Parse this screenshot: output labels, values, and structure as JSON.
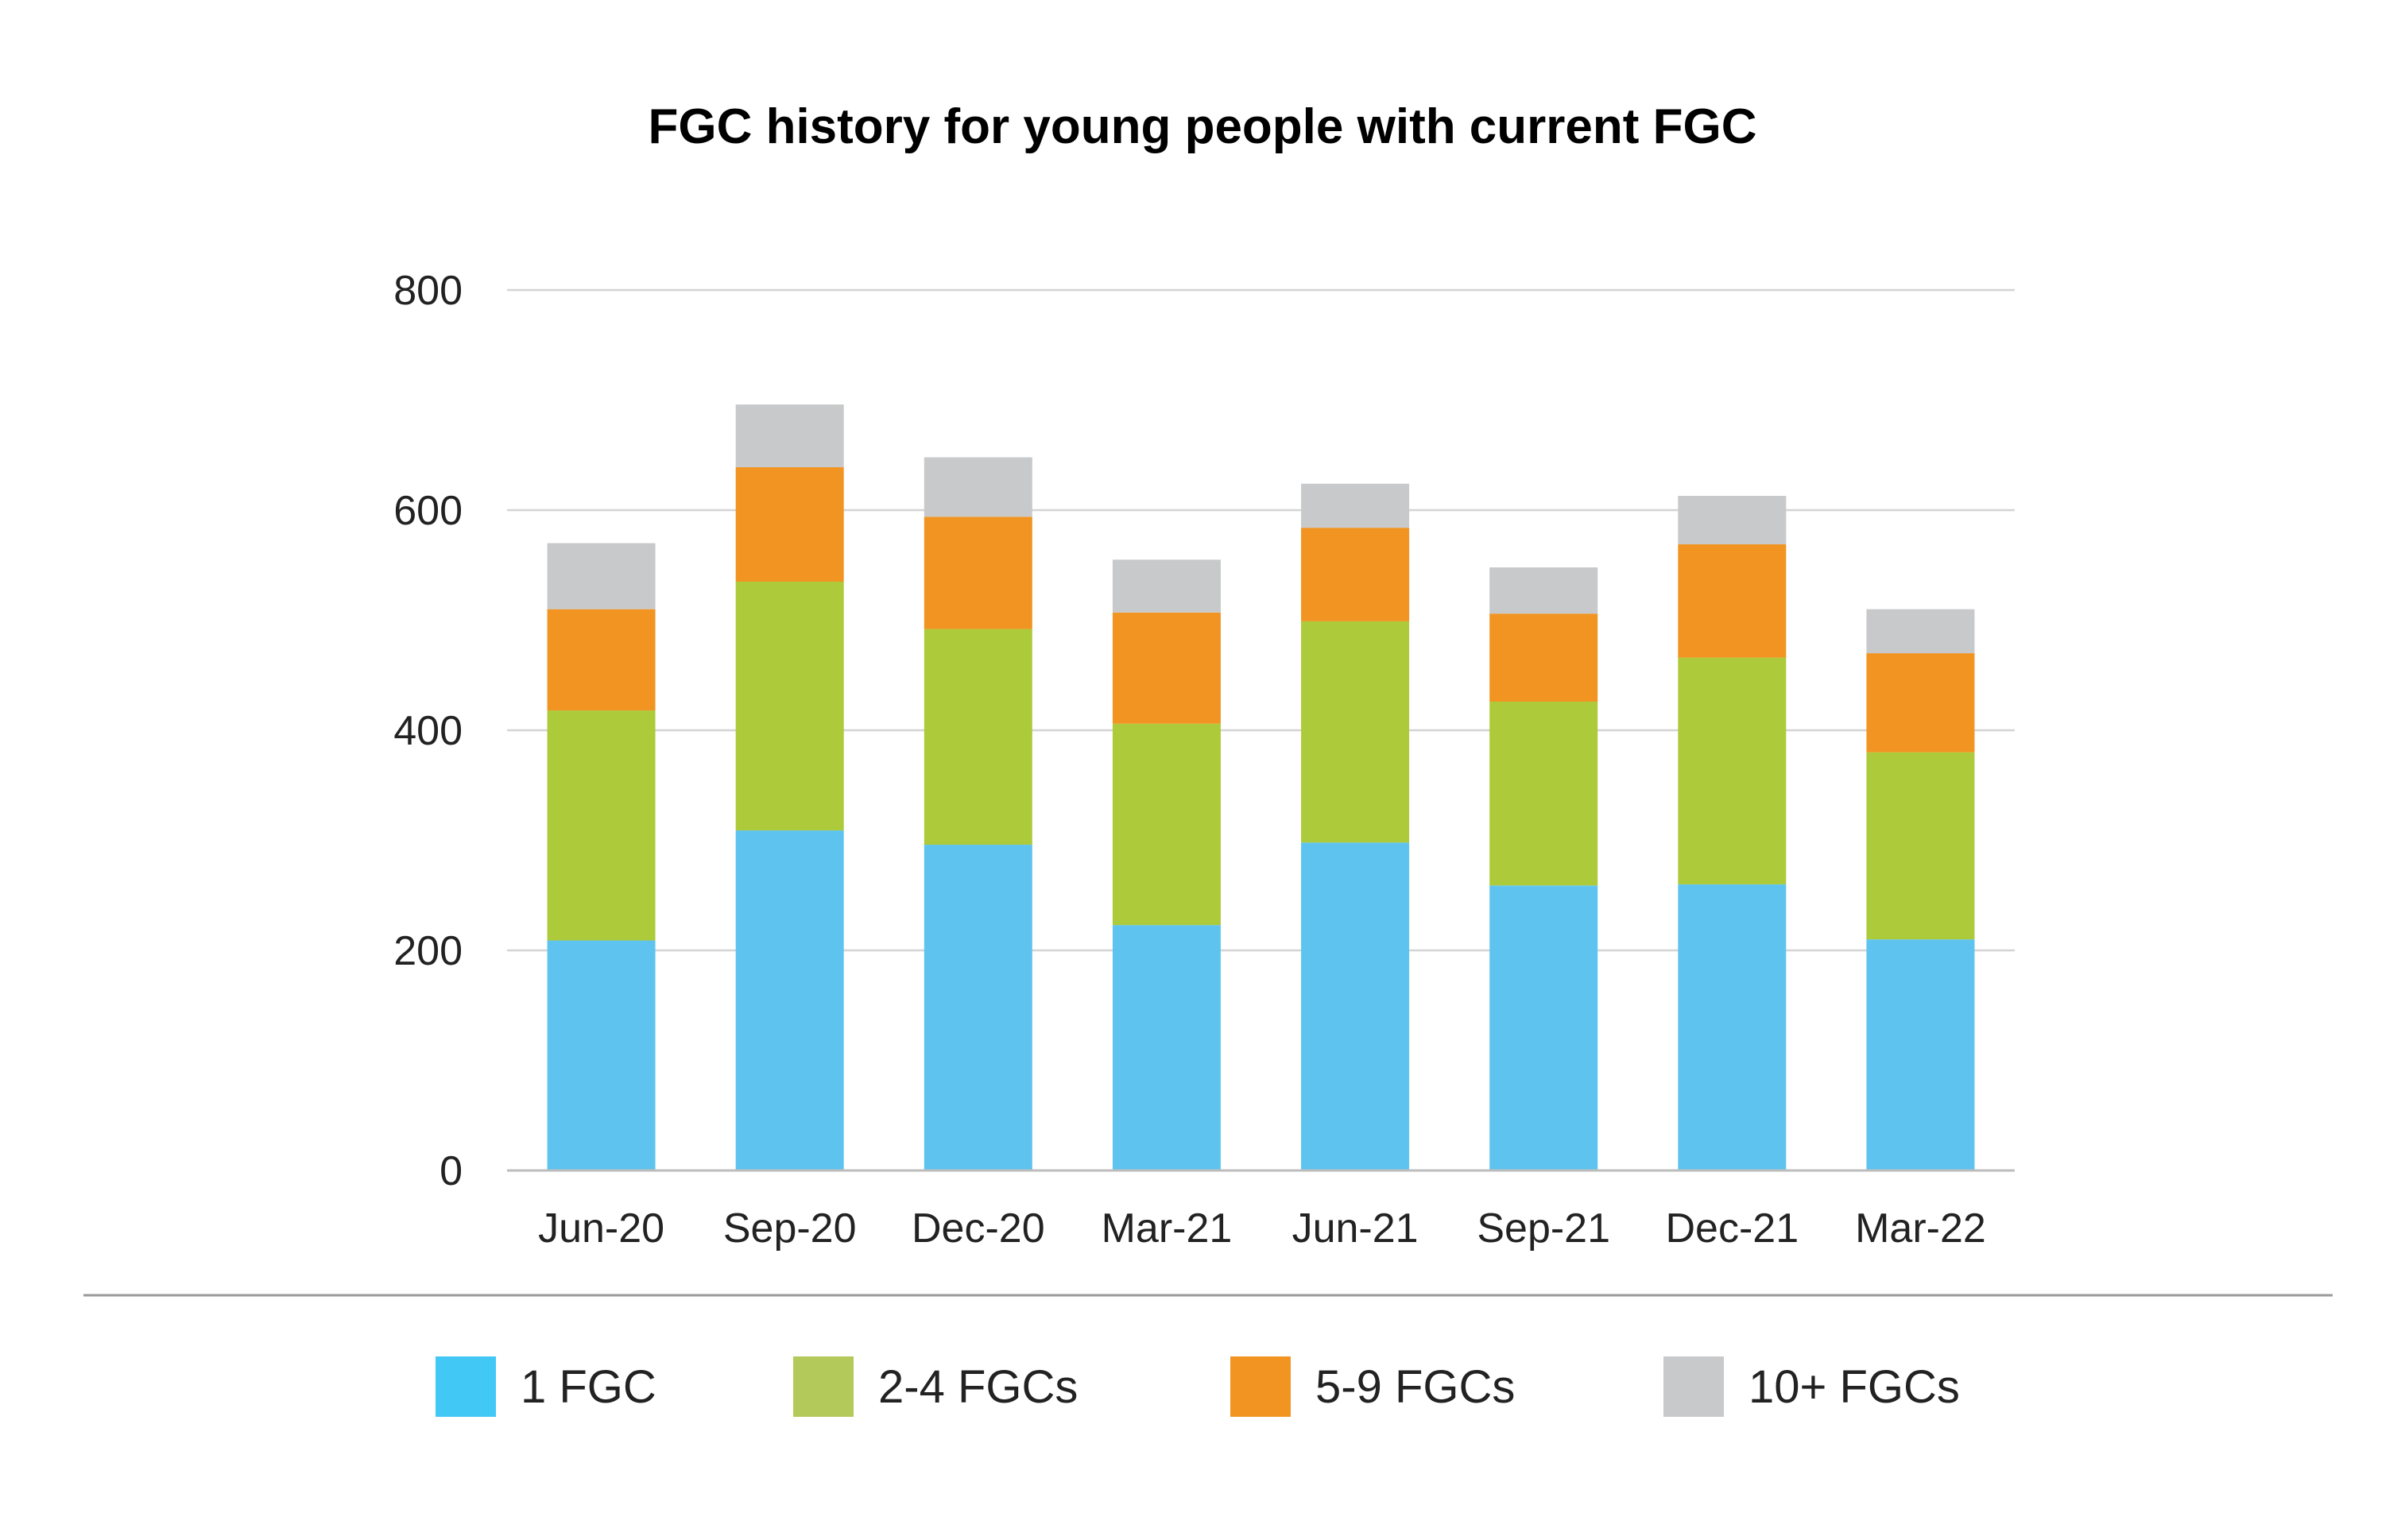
{
  "chart_data": {
    "type": "bar",
    "stacked": true,
    "title": "FGC history for young people with current FGC",
    "xlabel": "",
    "ylabel": "",
    "categories": [
      "Jun-20",
      "Sep-20",
      "Dec-20",
      "Mar-21",
      "Jun-21",
      "Sep-21",
      "Dec-21",
      "Mar-22"
    ],
    "ylim": [
      0,
      800
    ],
    "yticks": [
      0,
      200,
      400,
      600,
      800
    ],
    "grid": true,
    "legend_position": "bottom",
    "series": [
      {
        "name": "1 FGC",
        "color": "#5EC4EF",
        "legend_color": "#41C8F5",
        "values": [
          209,
          309,
          296,
          223,
          298,
          259,
          260,
          210
        ]
      },
      {
        "name": "2-4 FGCs",
        "color": "#ADCA3A",
        "legend_color": "#B3C95A",
        "values": [
          209,
          226,
          196,
          183,
          201,
          167,
          206,
          170
        ]
      },
      {
        "name": "5-9 FGCs",
        "color": "#F19422",
        "legend_color": "#F19422",
        "values": [
          92,
          104,
          102,
          101,
          85,
          80,
          103,
          90
        ]
      },
      {
        "name": "10+ FGCs",
        "color": "#C8C9CB",
        "legend_color": "#C8C9CB",
        "values": [
          60,
          57,
          54,
          48,
          40,
          42,
          44,
          40
        ]
      }
    ]
  }
}
